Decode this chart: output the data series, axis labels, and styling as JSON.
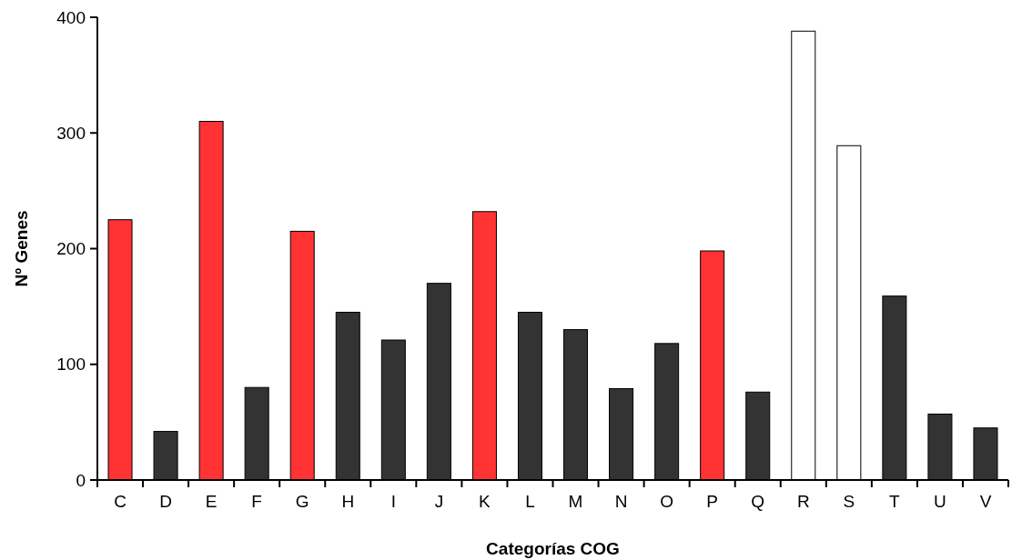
{
  "chart_data": {
    "type": "bar",
    "xlabel": "Categorías COG",
    "ylabel": "Nº Genes",
    "categories": [
      "C",
      "D",
      "E",
      "F",
      "G",
      "H",
      "I",
      "J",
      "K",
      "L",
      "M",
      "N",
      "O",
      "P",
      "Q",
      "R",
      "S",
      "T",
      "U",
      "V"
    ],
    "values": [
      225,
      42,
      310,
      80,
      215,
      145,
      121,
      170,
      232,
      145,
      130,
      79,
      118,
      198,
      76,
      388,
      289,
      159,
      57,
      45
    ],
    "colors": [
      "#ff3333",
      "#333333",
      "#ff3333",
      "#333333",
      "#ff3333",
      "#333333",
      "#333333",
      "#333333",
      "#ff3333",
      "#333333",
      "#333333",
      "#333333",
      "#333333",
      "#ff3333",
      "#333333",
      "#ffffff",
      "#ffffff",
      "#333333",
      "#333333",
      "#333333"
    ],
    "ylim": [
      0,
      400
    ],
    "yticks": [
      0,
      100,
      200,
      300,
      400
    ],
    "grid": false
  }
}
